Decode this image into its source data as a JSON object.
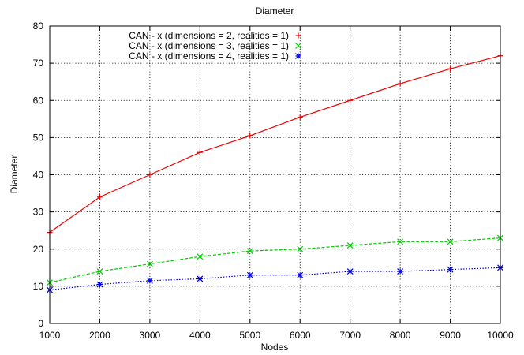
{
  "chart_data": {
    "type": "line",
    "title": "Diameter",
    "xlabel": "Nodes",
    "ylabel": "Diameter",
    "xlim": [
      1000,
      10000
    ],
    "ylim": [
      0,
      80
    ],
    "xticks": [
      1000,
      2000,
      3000,
      4000,
      5000,
      6000,
      7000,
      8000,
      9000,
      10000
    ],
    "yticks": [
      0,
      10,
      20,
      30,
      40,
      50,
      60,
      70,
      80
    ],
    "grid": true,
    "legend_position": "top-center",
    "x": [
      1000,
      2000,
      3000,
      4000,
      5000,
      6000,
      7000,
      8000,
      9000,
      10000
    ],
    "series": [
      {
        "name": "CAN - x (dimensions = 2, realities = 1)",
        "color": "#ee0000",
        "marker": "plus",
        "dash": "solid",
        "values": [
          24.5,
          34,
          40,
          46,
          50.5,
          55.5,
          60,
          64.5,
          68.5,
          72
        ]
      },
      {
        "name": "CAN - x (dimensions = 3, realities = 1)",
        "color": "#00cc00",
        "marker": "cross",
        "dash": "dashed",
        "values": [
          11,
          14,
          16,
          18,
          19.5,
          20,
          21,
          22,
          22,
          23
        ]
      },
      {
        "name": "CAN - x (dimensions = 4, realities = 1)",
        "color": "#0000dd",
        "marker": "star",
        "dash": "dotted",
        "values": [
          9,
          10.5,
          11.5,
          12,
          13,
          13,
          14,
          14,
          14.5,
          15
        ]
      }
    ]
  }
}
